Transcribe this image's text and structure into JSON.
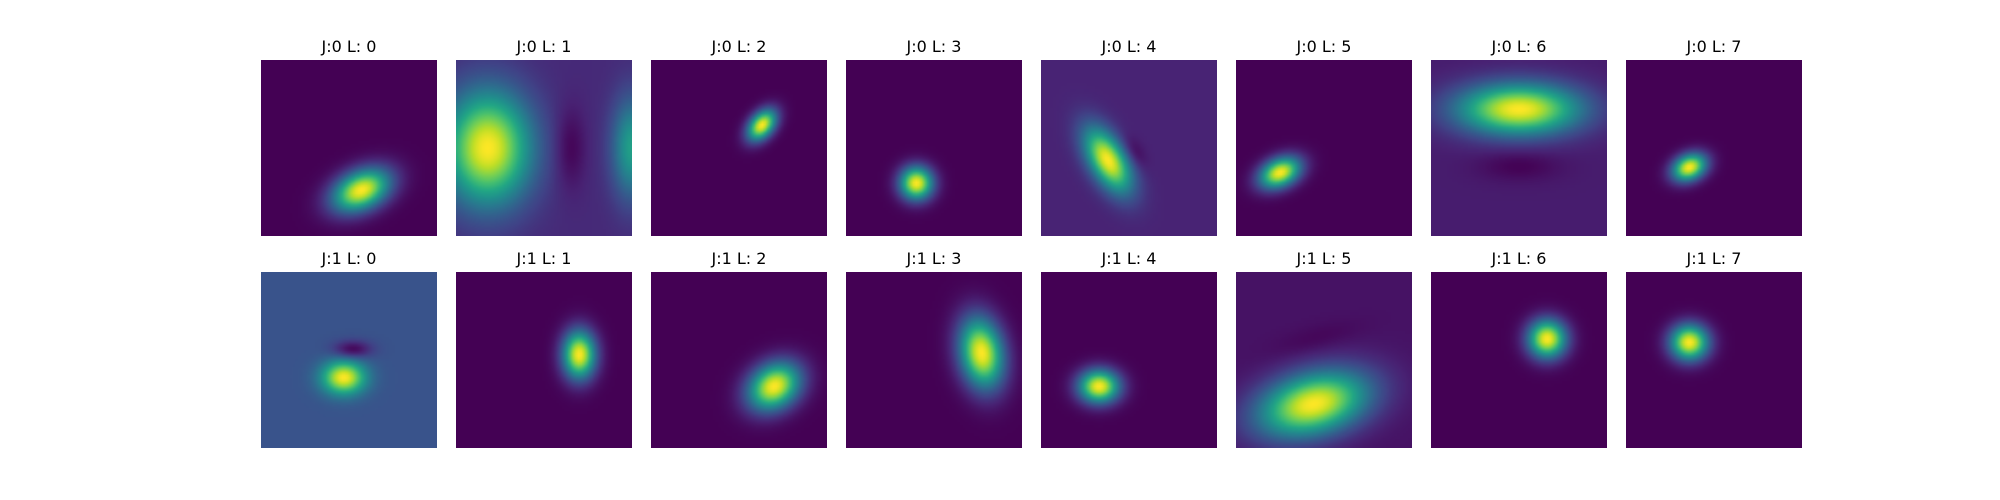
{
  "chart_data": {
    "type": "heatmap",
    "colormap": "viridis",
    "value_range": [
      0,
      1
    ],
    "grid": false,
    "panels": [
      {
        "title": "J:0 L: 0",
        "background": 0.0,
        "blobs": [
          {
            "cx": 0.57,
            "cy": 0.74,
            "sx": 0.12,
            "sy": 0.075,
            "angle": -25,
            "amp": 1.0
          }
        ]
      },
      {
        "title": "J:0 L: 1",
        "background": 0.12,
        "blobs": [
          {
            "cx": 0.18,
            "cy": 0.5,
            "sx": 0.17,
            "sy": 0.22,
            "angle": 0,
            "amp": 0.88
          },
          {
            "cx": 0.65,
            "cy": 0.5,
            "sx": 0.06,
            "sy": 0.16,
            "angle": 0,
            "amp": -0.12
          },
          {
            "cx": 1.0,
            "cy": 0.5,
            "sx": 0.08,
            "sy": 0.2,
            "angle": 0,
            "amp": 0.45
          }
        ]
      },
      {
        "title": "J:0 L: 2",
        "background": 0.0,
        "blobs": [
          {
            "cx": 0.63,
            "cy": 0.37,
            "sx": 0.07,
            "sy": 0.045,
            "angle": -50,
            "amp": 1.0
          }
        ]
      },
      {
        "title": "J:0 L: 3",
        "background": 0.0,
        "blobs": [
          {
            "cx": 0.4,
            "cy": 0.7,
            "sx": 0.065,
            "sy": 0.065,
            "angle": 0,
            "amp": 1.0
          }
        ]
      },
      {
        "title": "J:0 L: 4",
        "background": 0.1,
        "blobs": [
          {
            "cx": 0.38,
            "cy": 0.57,
            "sx": 0.14,
            "sy": 0.07,
            "angle": 60,
            "amp": 0.9
          },
          {
            "cx": 0.53,
            "cy": 0.52,
            "sx": 0.07,
            "sy": 0.035,
            "angle": 60,
            "amp": -0.1
          }
        ]
      },
      {
        "title": "J:0 L: 5",
        "background": 0.0,
        "blobs": [
          {
            "cx": 0.25,
            "cy": 0.64,
            "sx": 0.085,
            "sy": 0.055,
            "angle": -25,
            "amp": 1.0
          }
        ]
      },
      {
        "title": "J:0 L: 6",
        "background": 0.08,
        "blobs": [
          {
            "cx": 0.5,
            "cy": 0.28,
            "sx": 0.24,
            "sy": 0.1,
            "angle": 0,
            "amp": 0.92
          },
          {
            "cx": 0.5,
            "cy": 0.6,
            "sx": 0.16,
            "sy": 0.06,
            "angle": 0,
            "amp": -0.08
          }
        ]
      },
      {
        "title": "J:0 L: 7",
        "background": 0.0,
        "blobs": [
          {
            "cx": 0.36,
            "cy": 0.61,
            "sx": 0.07,
            "sy": 0.05,
            "angle": -25,
            "amp": 1.0
          }
        ]
      },
      {
        "title": "J:1 L: 0",
        "background": 0.26,
        "blobs": [
          {
            "cx": 0.47,
            "cy": 0.6,
            "sx": 0.085,
            "sy": 0.065,
            "angle": 0,
            "amp": 0.74
          },
          {
            "cx": 0.52,
            "cy": 0.44,
            "sx": 0.075,
            "sy": 0.035,
            "angle": 0,
            "amp": -0.26
          }
        ]
      },
      {
        "title": "J:1 L: 1",
        "background": 0.0,
        "blobs": [
          {
            "cx": 0.7,
            "cy": 0.47,
            "sx": 0.065,
            "sy": 0.095,
            "angle": 0,
            "amp": 1.0
          }
        ]
      },
      {
        "title": "J:1 L: 2",
        "background": 0.0,
        "blobs": [
          {
            "cx": 0.7,
            "cy": 0.65,
            "sx": 0.11,
            "sy": 0.085,
            "angle": -35,
            "amp": 1.0
          }
        ]
      },
      {
        "title": "J:1 L: 3",
        "background": 0.0,
        "blobs": [
          {
            "cx": 0.77,
            "cy": 0.46,
            "sx": 0.085,
            "sy": 0.14,
            "angle": -10,
            "amp": 1.0
          }
        ]
      },
      {
        "title": "J:1 L: 4",
        "background": 0.0,
        "blobs": [
          {
            "cx": 0.33,
            "cy": 0.65,
            "sx": 0.08,
            "sy": 0.065,
            "angle": 0,
            "amp": 1.0
          }
        ]
      },
      {
        "title": "J:1 L: 5",
        "background": 0.05,
        "blobs": [
          {
            "cx": 0.44,
            "cy": 0.75,
            "sx": 0.22,
            "sy": 0.12,
            "angle": -15,
            "amp": 0.95
          },
          {
            "cx": 0.45,
            "cy": 0.38,
            "sx": 0.18,
            "sy": 0.05,
            "angle": -15,
            "amp": -0.04
          }
        ]
      },
      {
        "title": "J:1 L: 6",
        "background": 0.0,
        "blobs": [
          {
            "cx": 0.66,
            "cy": 0.38,
            "sx": 0.075,
            "sy": 0.075,
            "angle": 0,
            "amp": 1.0
          }
        ]
      },
      {
        "title": "J:1 L: 7",
        "background": 0.0,
        "blobs": [
          {
            "cx": 0.36,
            "cy": 0.4,
            "sx": 0.075,
            "sy": 0.07,
            "angle": 0,
            "amp": 1.0
          }
        ]
      }
    ]
  }
}
